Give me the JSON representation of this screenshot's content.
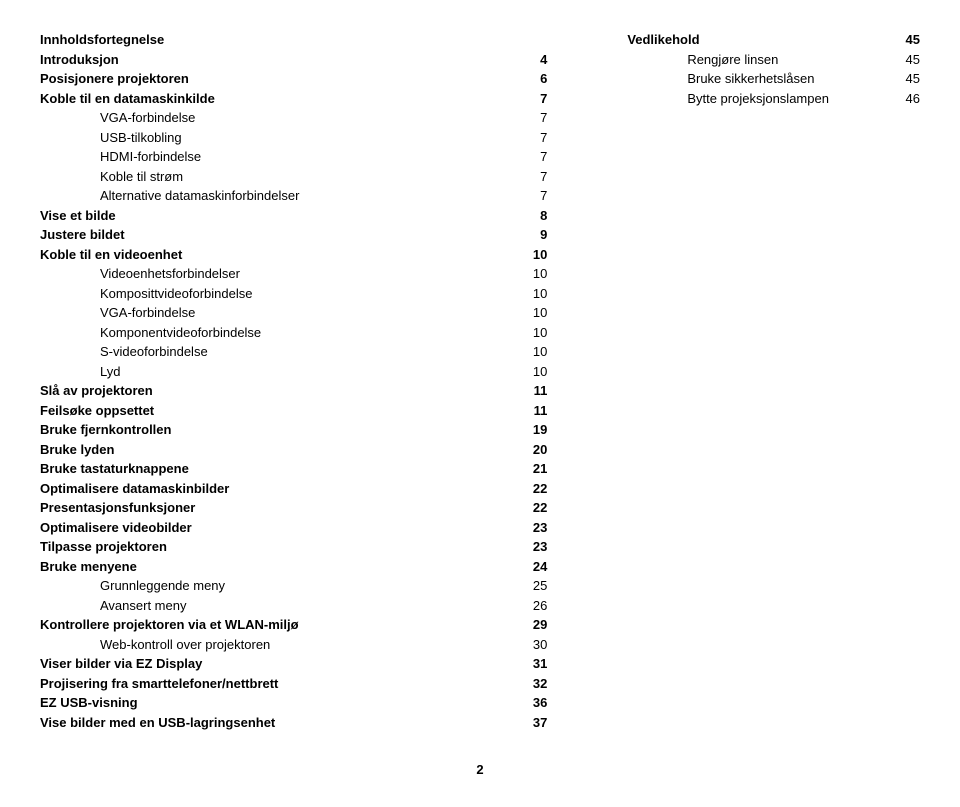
{
  "title": "Innholdsfortegnelse",
  "left": [
    {
      "label": "Introduksjon",
      "page": "4",
      "bold": true,
      "indent": 0
    },
    {
      "label": "Posisjonere projektoren",
      "page": "6",
      "bold": true,
      "indent": 0
    },
    {
      "label": "Koble til en datamaskinkilde",
      "page": "7",
      "bold": true,
      "indent": 0
    },
    {
      "label": "VGA-forbindelse",
      "page": "7",
      "bold": false,
      "indent": 1
    },
    {
      "label": "USB-tilkobling",
      "page": "7",
      "bold": false,
      "indent": 1
    },
    {
      "label": "HDMI-forbindelse",
      "page": "7",
      "bold": false,
      "indent": 1
    },
    {
      "label": "Koble til strøm",
      "page": "7",
      "bold": false,
      "indent": 1
    },
    {
      "label": "Alternative datamaskinforbindelser",
      "page": "7",
      "bold": false,
      "indent": 1
    },
    {
      "label": "Vise et bilde",
      "page": "8",
      "bold": true,
      "indent": 0
    },
    {
      "label": "Justere bildet",
      "page": "9",
      "bold": true,
      "indent": 0
    },
    {
      "label": "Koble til en videoenhet",
      "page": "10",
      "bold": true,
      "indent": 0
    },
    {
      "label": "Videoenhetsforbindelser",
      "page": "10",
      "bold": false,
      "indent": 1
    },
    {
      "label": "Komposittvideoforbindelse",
      "page": "10",
      "bold": false,
      "indent": 1
    },
    {
      "label": "VGA-forbindelse",
      "page": "10",
      "bold": false,
      "indent": 1
    },
    {
      "label": "Komponentvideoforbindelse",
      "page": "10",
      "bold": false,
      "indent": 1
    },
    {
      "label": "S-videoforbindelse",
      "page": "10",
      "bold": false,
      "indent": 1
    },
    {
      "label": "Lyd",
      "page": "10",
      "bold": false,
      "indent": 1
    },
    {
      "label": "Slå av projektoren",
      "page": "11",
      "bold": true,
      "indent": 0
    },
    {
      "label": "Feilsøke oppsettet",
      "page": "11",
      "bold": true,
      "indent": 0
    },
    {
      "label": "Bruke fjernkontrollen",
      "page": "19",
      "bold": true,
      "indent": 0
    },
    {
      "label": "Bruke lyden",
      "page": "20",
      "bold": true,
      "indent": 0
    },
    {
      "label": "Bruke tastaturknappene",
      "page": "21",
      "bold": true,
      "indent": 0
    },
    {
      "label": "Optimalisere datamaskinbilder",
      "page": "22",
      "bold": true,
      "indent": 0
    },
    {
      "label": "Presentasjonsfunksjoner",
      "page": "22",
      "bold": true,
      "indent": 0
    },
    {
      "label": "Optimalisere videobilder",
      "page": "23",
      "bold": true,
      "indent": 0
    },
    {
      "label": "Tilpasse projektoren",
      "page": "23",
      "bold": true,
      "indent": 0
    },
    {
      "label": "Bruke menyene",
      "page": "24",
      "bold": true,
      "indent": 0
    },
    {
      "label": "Grunnleggende meny",
      "page": "25",
      "bold": false,
      "indent": 1
    },
    {
      "label": "Avansert meny",
      "page": "26",
      "bold": false,
      "indent": 1
    },
    {
      "label": "Kontrollere projektoren via et WLAN-miljø",
      "page": "29",
      "bold": true,
      "indent": 0
    },
    {
      "label": "Web-kontroll over projektoren",
      "page": "30",
      "bold": false,
      "indent": 1
    },
    {
      "label": "Viser bilder via EZ Display",
      "page": "31",
      "bold": true,
      "indent": 0
    },
    {
      "label": "Projisering fra smarttelefoner/nettbrett",
      "page": "32",
      "bold": true,
      "indent": 0
    },
    {
      "label": "EZ USB-visning",
      "page": "36",
      "bold": true,
      "indent": 0
    },
    {
      "label": "Vise bilder med en USB-lagringsenhet",
      "page": "37",
      "bold": true,
      "indent": 0
    }
  ],
  "right": [
    {
      "label": "Vedlikehold",
      "page": "45",
      "bold": true,
      "indent": 0
    },
    {
      "label": "Rengjøre linsen",
      "page": "45",
      "bold": false,
      "indent": 1
    },
    {
      "label": "Bruke sikkerhetslåsen",
      "page": "45",
      "bold": false,
      "indent": 1
    },
    {
      "label": "Bytte projeksjonslampen",
      "page": "46",
      "bold": false,
      "indent": 1
    }
  ],
  "pageNumber": "2"
}
